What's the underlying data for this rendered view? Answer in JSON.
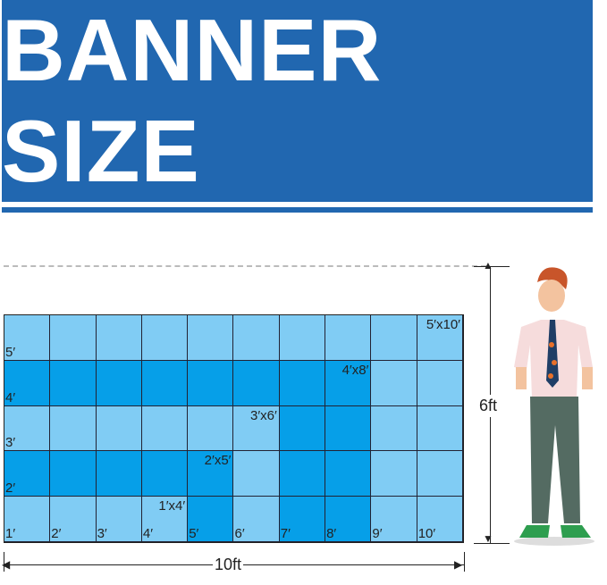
{
  "title": "BANNER SIZE",
  "colors": {
    "banner": "#2167b0",
    "light_cell": "#80ccf4",
    "dark_cell": "#069fe8"
  },
  "row_labels": [
    "5′",
    "4′",
    "3′",
    "2′"
  ],
  "col_labels": [
    "1′",
    "2′",
    "3′",
    "4′",
    "5′",
    "6′",
    "7′",
    "8′",
    "9′",
    "10′"
  ],
  "sizes": [
    "5′x10′",
    "4′x8′",
    "3′x6′",
    "2′x5′",
    "1′x4′"
  ],
  "height_label": "6ft",
  "width_label": "10ft"
}
